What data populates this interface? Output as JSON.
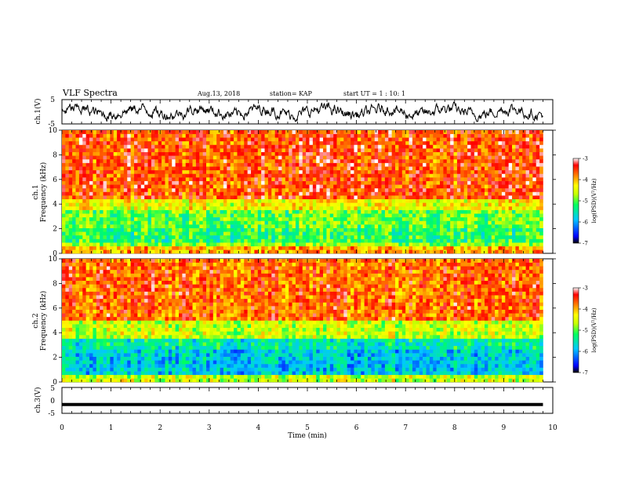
{
  "header": {
    "title": "VLF Spectra",
    "date": "Aug.13, 2018",
    "station": "station= KAP",
    "start_ut": "start  UT =   1 : 10: 1"
  },
  "chart_data": [
    {
      "type": "line",
      "panel": "ch1-waveform",
      "ylabel": "ch.1(V)",
      "ylim": [
        -5,
        5
      ],
      "yticks": [
        "5",
        "-5"
      ],
      "xlim": [
        0,
        10
      ],
      "series_color": "#000000",
      "approx_range": [
        -4,
        4
      ]
    },
    {
      "type": "heatmap",
      "panel": "ch1-spectrogram",
      "ylabel_top": "ch.1",
      "ylabel_bottom": "Frequency  (kHz)",
      "ylim": [
        0,
        10
      ],
      "yticks": [
        "0",
        "2",
        "4",
        "6",
        "8",
        "10"
      ],
      "xlim": [
        0,
        9.8
      ],
      "colorbar_label": "log(PSD)(V²/Hz)",
      "colorbar_range": [
        -7,
        -3
      ],
      "colorbar_ticks": [
        "-3",
        "-4",
        "-5",
        "-6",
        "-7"
      ],
      "levels_by_band": [
        {
          "freq_khz": [
            0.0,
            0.5
          ],
          "log_psd": -4.0
        },
        {
          "freq_khz": [
            0.5,
            1.0
          ],
          "log_psd": -4.8
        },
        {
          "freq_khz": [
            1.0,
            2.0
          ],
          "log_psd": -5.2
        },
        {
          "freq_khz": [
            2.0,
            3.4
          ],
          "log_psd": -5.0
        },
        {
          "freq_khz": [
            3.4,
            4.5
          ],
          "log_psd": -4.4
        },
        {
          "freq_khz": [
            4.5,
            10.0
          ],
          "log_psd": -3.6
        }
      ]
    },
    {
      "type": "heatmap",
      "panel": "ch2-spectrogram",
      "ylabel_top": "ch.2",
      "ylabel_bottom": "Frequency  (kHz)",
      "ylim": [
        0,
        10
      ],
      "yticks": [
        "0",
        "2",
        "4",
        "6",
        "8",
        "10"
      ],
      "xlim": [
        0,
        9.8
      ],
      "colorbar_label": "log(PSD)(V²/Hz)",
      "colorbar_range": [
        -7,
        -3
      ],
      "colorbar_ticks": [
        "-3",
        "-4",
        "-5",
        "-6",
        "-7"
      ],
      "levels_by_band": [
        {
          "freq_khz": [
            0.0,
            0.6
          ],
          "log_psd": -4.6
        },
        {
          "freq_khz": [
            0.6,
            2.6
          ],
          "log_psd": -5.8
        },
        {
          "freq_khz": [
            2.6,
            3.4
          ],
          "log_psd": -5.5
        },
        {
          "freq_khz": [
            3.4,
            5.0
          ],
          "log_psd": -4.6
        },
        {
          "freq_khz": [
            5.0,
            10.0
          ],
          "log_psd": -3.7
        }
      ]
    },
    {
      "type": "line",
      "panel": "ch3-waveform",
      "ylabel": "ch.3(V)",
      "ylim": [
        -5,
        5
      ],
      "yticks": [
        "5",
        "0",
        "-5"
      ],
      "xlim": [
        0,
        10
      ],
      "constant_value": -1,
      "series_color": "#000000"
    }
  ],
  "xaxis": {
    "label": "Time  (min)",
    "range": [
      0,
      10
    ],
    "ticks": [
      "0",
      "1",
      "2",
      "3",
      "4",
      "5",
      "6",
      "7",
      "8",
      "9",
      "10"
    ]
  }
}
